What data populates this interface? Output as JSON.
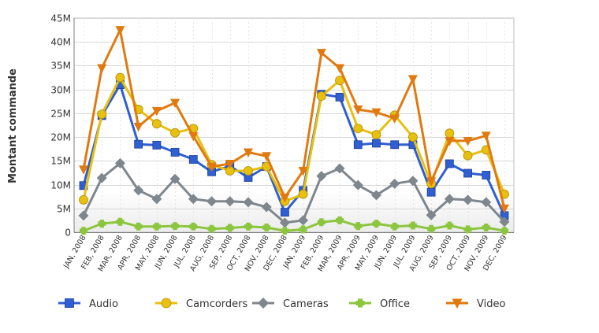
{
  "chart_data": {
    "type": "line",
    "ylabel": "Montant commande",
    "xlabel": "",
    "ylim": [
      0,
      45000000
    ],
    "y_ticks": [
      {
        "value": 0,
        "label": "0"
      },
      {
        "value": 5000000,
        "label": "5M"
      },
      {
        "value": 10000000,
        "label": "10M"
      },
      {
        "value": 15000000,
        "label": "15M"
      },
      {
        "value": 20000000,
        "label": "20M"
      },
      {
        "value": 25000000,
        "label": "25M"
      },
      {
        "value": 30000000,
        "label": "30M"
      },
      {
        "value": 35000000,
        "label": "35M"
      },
      {
        "value": 40000000,
        "label": "40M"
      },
      {
        "value": 45000000,
        "label": "45M"
      }
    ],
    "categories": [
      "JAN, 2008",
      "FEB, 2008",
      "MAR, 2008",
      "APR, 2008",
      "MAY, 2008",
      "JUN, 2008",
      "JUL, 2008",
      "AUG, 2008",
      "SEP, 2008",
      "OCT, 2008",
      "NOV, 2008",
      "DEC, 2008",
      "JAN, 2009",
      "FEB, 2009",
      "MAR, 2009",
      "APR, 2009",
      "MAY, 2009",
      "JUN, 2009",
      "JUL, 2009",
      "AUG, 2009",
      "SEP, 2009",
      "OCT, 2009",
      "NOV, 2009",
      "DEC, 2009"
    ],
    "grid": true,
    "legend_position": "bottom",
    "series": [
      {
        "name": "Audio",
        "color": "#2f5fd0",
        "marker": "square",
        "values": [
          9800000,
          24500000,
          31000000,
          18500000,
          18300000,
          16800000,
          15300000,
          12700000,
          13900000,
          11500000,
          13800000,
          4200000,
          8800000,
          29000000,
          28400000,
          18400000,
          18700000,
          18400000,
          18400000,
          8400000,
          14400000,
          12400000,
          12000000,
          3500000
        ]
      },
      {
        "name": "Camcorders",
        "color": "#e8c010",
        "marker": "circle",
        "values": [
          6800000,
          24800000,
          32500000,
          25800000,
          22800000,
          20900000,
          21800000,
          14200000,
          12900000,
          12900000,
          13800000,
          6500000,
          8000000,
          28600000,
          31900000,
          21800000,
          20500000,
          24600000,
          20000000,
          10200000,
          20800000,
          16100000,
          17300000,
          8000000
        ]
      },
      {
        "name": "Cameras",
        "color": "#7f868c",
        "marker": "diamond",
        "values": [
          3500000,
          11400000,
          14500000,
          8800000,
          7000000,
          11200000,
          7000000,
          6500000,
          6500000,
          6300000,
          5300000,
          2000000,
          2500000,
          11800000,
          13400000,
          9900000,
          7800000,
          10200000,
          10800000,
          3600000,
          7000000,
          6800000,
          6300000,
          2200000
        ]
      },
      {
        "name": "Office",
        "color": "#8cc63f",
        "marker": "cross",
        "values": [
          300000,
          1800000,
          2200000,
          1200000,
          1200000,
          1300000,
          1200000,
          700000,
          900000,
          1200000,
          1000000,
          300000,
          600000,
          2100000,
          2500000,
          1300000,
          1800000,
          1200000,
          1400000,
          700000,
          1400000,
          600000,
          1000000,
          300000
        ]
      },
      {
        "name": "Video",
        "color": "#e07a10",
        "marker": "triangle-down",
        "values": [
          13200000,
          34500000,
          42500000,
          22200000,
          25500000,
          27200000,
          20200000,
          13800000,
          14400000,
          16800000,
          16000000,
          7300000,
          12900000,
          37700000,
          34500000,
          25800000,
          25200000,
          23900000,
          32200000,
          10700000,
          19200000,
          19200000,
          20300000,
          5000000
        ]
      }
    ]
  }
}
